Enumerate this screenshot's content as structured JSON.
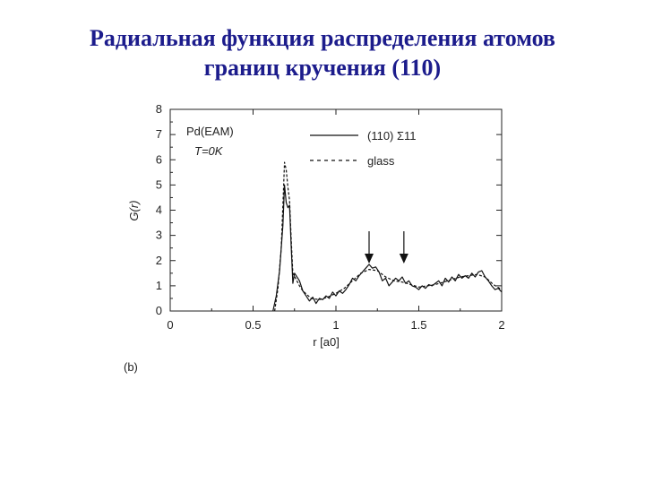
{
  "slide": {
    "title_line1": "Радиальная функция распределения атомов",
    "title_line2": "границ кручения (110)"
  },
  "chart_data": {
    "type": "line",
    "annotation_system": "Pd(EAM)",
    "annotation_temperature": "T=0K",
    "panel_label": "(b)",
    "xlabel": "r [a0]",
    "ylabel": "G(r)",
    "xlim": [
      0,
      2
    ],
    "ylim": [
      0,
      8
    ],
    "x_ticks": [
      "0",
      "0.5",
      "1",
      "1.5",
      "2"
    ],
    "y_ticks": [
      "0",
      "1",
      "2",
      "3",
      "4",
      "5",
      "6",
      "7",
      "8"
    ],
    "legend_position": "top-right",
    "arrows_at_r": [
      1.2,
      1.41
    ],
    "colors": {
      "line": "#111111",
      "title": "#1c1c8c"
    },
    "series": [
      {
        "name": "(110) Σ11",
        "style": "solid",
        "x": [
          0.62,
          0.64,
          0.66,
          0.68,
          0.69,
          0.7,
          0.71,
          0.72,
          0.73,
          0.74,
          0.75,
          0.76,
          0.78,
          0.8,
          0.82,
          0.84,
          0.86,
          0.88,
          0.9,
          0.92,
          0.94,
          0.96,
          0.98,
          1.0,
          1.02,
          1.04,
          1.06,
          1.08,
          1.1,
          1.12,
          1.14,
          1.16,
          1.18,
          1.2,
          1.22,
          1.24,
          1.26,
          1.28,
          1.3,
          1.32,
          1.34,
          1.36,
          1.38,
          1.4,
          1.42,
          1.44,
          1.46,
          1.48,
          1.5,
          1.52,
          1.54,
          1.56,
          1.58,
          1.6,
          1.62,
          1.64,
          1.66,
          1.68,
          1.7,
          1.72,
          1.74,
          1.76,
          1.78,
          1.8,
          1.82,
          1.84,
          1.86,
          1.88,
          1.9,
          1.92,
          1.94,
          1.96,
          1.98,
          2.0
        ],
        "y": [
          0.0,
          0.6,
          1.6,
          3.4,
          5.0,
          4.3,
          4.1,
          4.2,
          2.6,
          1.1,
          1.5,
          1.4,
          1.2,
          0.8,
          0.6,
          0.4,
          0.55,
          0.3,
          0.5,
          0.45,
          0.6,
          0.5,
          0.75,
          0.6,
          0.8,
          0.7,
          0.85,
          1.05,
          1.3,
          1.2,
          1.4,
          1.55,
          1.7,
          1.85,
          1.7,
          1.75,
          1.55,
          1.2,
          1.3,
          1.0,
          1.15,
          1.3,
          1.2,
          1.35,
          1.1,
          1.2,
          1.0,
          0.95,
          0.85,
          1.0,
          0.9,
          1.05,
          1.0,
          1.1,
          1.2,
          1.0,
          1.3,
          1.15,
          1.35,
          1.2,
          1.45,
          1.3,
          1.4,
          1.3,
          1.5,
          1.35,
          1.55,
          1.6,
          1.35,
          1.2,
          1.0,
          0.85,
          0.9,
          0.75
        ]
      },
      {
        "name": "glass",
        "style": "dashed",
        "x": [
          0.63,
          0.65,
          0.67,
          0.68,
          0.69,
          0.7,
          0.71,
          0.72,
          0.73,
          0.74,
          0.76,
          0.78,
          0.8,
          0.85,
          0.9,
          0.95,
          1.0,
          1.05,
          1.1,
          1.15,
          1.2,
          1.25,
          1.3,
          1.35,
          1.4,
          1.45,
          1.5,
          1.55,
          1.6,
          1.65,
          1.7,
          1.75,
          1.8,
          1.85,
          1.9,
          1.95,
          2.0
        ],
        "y": [
          0.0,
          0.9,
          2.5,
          4.2,
          5.9,
          5.6,
          4.9,
          4.4,
          2.9,
          1.5,
          1.25,
          1.0,
          0.8,
          0.5,
          0.45,
          0.55,
          0.7,
          0.9,
          1.2,
          1.5,
          1.65,
          1.6,
          1.35,
          1.2,
          1.15,
          1.05,
          0.95,
          1.0,
          1.05,
          1.15,
          1.25,
          1.35,
          1.4,
          1.45,
          1.35,
          1.05,
          0.85
        ]
      }
    ]
  }
}
